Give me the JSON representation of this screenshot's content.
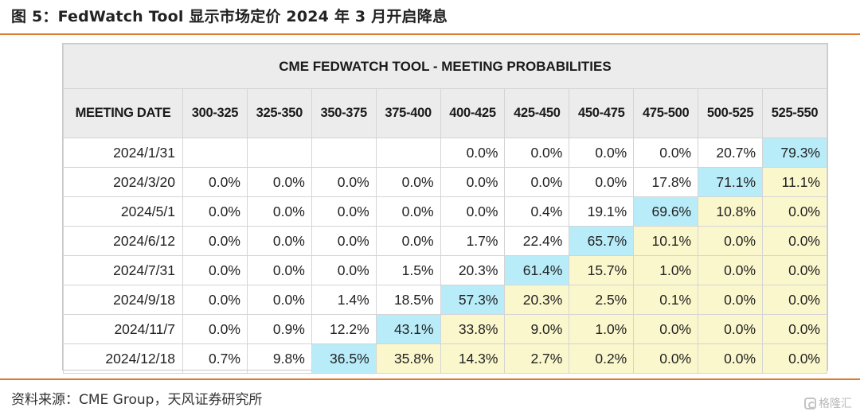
{
  "figure": {
    "title": "图 5：FedWatch Tool 显示市场定价 2024 年 3 月开启降息",
    "source": "资料来源：CME Group，天风证券研究所",
    "watermark": "格隆汇",
    "watermark_icon": "glh-logo-icon"
  },
  "colors": {
    "accent_rule": "#e07a2e",
    "highlight_max": "#b9ecf9",
    "highlight_rest": "#fbf7cd",
    "header_bg": "#ececec"
  },
  "table": {
    "title": "CME FEDWATCH TOOL - MEETING PROBABILITIES",
    "date_header": "MEETING DATE",
    "columns": [
      "300-325",
      "325-350",
      "350-375",
      "375-400",
      "400-425",
      "425-450",
      "450-475",
      "475-500",
      "500-525",
      "525-550"
    ],
    "rows": [
      {
        "date": "2024/1/31",
        "cells": [
          "",
          "",
          "",
          "",
          "0.0%",
          "0.0%",
          "0.0%",
          "0.0%",
          "20.7%",
          "79.3%"
        ]
      },
      {
        "date": "2024/3/20",
        "cells": [
          "0.0%",
          "0.0%",
          "0.0%",
          "0.0%",
          "0.0%",
          "0.0%",
          "0.0%",
          "17.8%",
          "71.1%",
          "11.1%"
        ]
      },
      {
        "date": "2024/5/1",
        "cells": [
          "0.0%",
          "0.0%",
          "0.0%",
          "0.0%",
          "0.0%",
          "0.4%",
          "19.1%",
          "69.6%",
          "10.8%",
          "0.0%"
        ]
      },
      {
        "date": "2024/6/12",
        "cells": [
          "0.0%",
          "0.0%",
          "0.0%",
          "0.0%",
          "1.7%",
          "22.4%",
          "65.7%",
          "10.1%",
          "0.0%",
          "0.0%"
        ]
      },
      {
        "date": "2024/7/31",
        "cells": [
          "0.0%",
          "0.0%",
          "0.0%",
          "1.5%",
          "20.3%",
          "61.4%",
          "15.7%",
          "1.0%",
          "0.0%",
          "0.0%"
        ]
      },
      {
        "date": "2024/9/18",
        "cells": [
          "0.0%",
          "0.0%",
          "1.4%",
          "18.5%",
          "57.3%",
          "20.3%",
          "2.5%",
          "0.1%",
          "0.0%",
          "0.0%"
        ]
      },
      {
        "date": "2024/11/7",
        "cells": [
          "0.0%",
          "0.9%",
          "12.2%",
          "43.1%",
          "33.8%",
          "9.0%",
          "1.0%",
          "0.0%",
          "0.0%",
          "0.0%"
        ]
      },
      {
        "date": "2024/12/18",
        "cells": [
          "0.7%",
          "9.8%",
          "36.5%",
          "35.8%",
          "14.3%",
          "2.7%",
          "0.2%",
          "0.0%",
          "0.0%",
          "0.0%"
        ]
      }
    ],
    "highlight_max_index": [
      9,
      8,
      7,
      6,
      5,
      4,
      3,
      2
    ],
    "highlight_rest_from_index": [
      null,
      9,
      8,
      7,
      6,
      5,
      4,
      3
    ]
  }
}
